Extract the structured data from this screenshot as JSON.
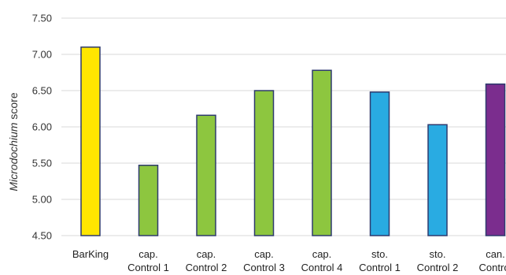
{
  "chart_data": {
    "type": "bar",
    "categories": [
      "BarKing",
      "cap. Control 1",
      "cap. Control 2",
      "cap. Control 3",
      "cap. Control 4",
      "sto. Control 1",
      "sto. Control 2",
      "can. Control"
    ],
    "category_lines": [
      [
        "BarKing"
      ],
      [
        "cap.",
        "Control 1"
      ],
      [
        "cap.",
        "Control 2"
      ],
      [
        "cap.",
        "Control 3"
      ],
      [
        "cap.",
        "Control 4"
      ],
      [
        "sto.",
        "Control 1"
      ],
      [
        "sto.",
        "Control 2"
      ],
      [
        "can.",
        "Control"
      ]
    ],
    "values": [
      7.1,
      5.47,
      6.16,
      6.5,
      6.78,
      6.48,
      6.03,
      6.59
    ],
    "bar_colors": [
      "#ffe600",
      "#8dc63f",
      "#8dc63f",
      "#8dc63f",
      "#8dc63f",
      "#29abe2",
      "#29abe2",
      "#7b2d8e"
    ],
    "title": "",
    "xlabel": "",
    "ylabel_italic": "Microdochium",
    "ylabel_rest": " score",
    "ylim": [
      4.5,
      7.5
    ],
    "yticks": [
      "4.50",
      "5.00",
      "5.50",
      "6.00",
      "6.50",
      "7.00",
      "7.50"
    ],
    "ytick_values": [
      4.5,
      5.0,
      5.5,
      6.0,
      6.5,
      7.0,
      7.5
    ],
    "grid": true,
    "legend": "none",
    "bar_outline_color": "#2e3a6e",
    "grid_color": "#d9d9d9"
  }
}
